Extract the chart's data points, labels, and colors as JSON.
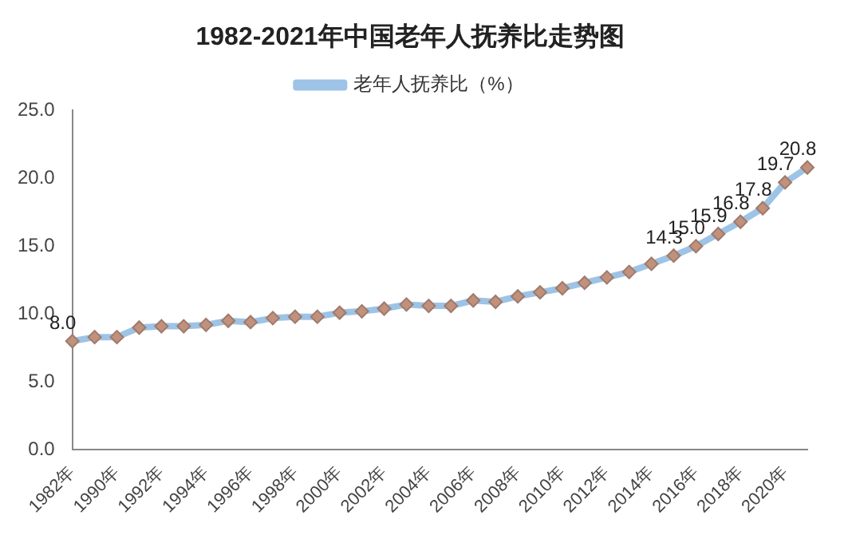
{
  "chart_data": {
    "type": "line",
    "title": "1982-2021年中国老年人抚养比走势图",
    "legend": "top",
    "marker": "diamond",
    "grid": false,
    "categories": [
      "1982年",
      null,
      "1990年",
      null,
      "1992年",
      null,
      "1994年",
      null,
      "1996年",
      null,
      "1998年",
      null,
      "2000年",
      null,
      "2002年",
      null,
      "2004年",
      null,
      "2006年",
      null,
      "2008年",
      null,
      "2010年",
      null,
      "2012年",
      null,
      "2014年",
      null,
      "2016年",
      null,
      "2018年",
      null,
      "2020年",
      null
    ],
    "ylim": [
      0,
      25
    ],
    "yticks": [
      {
        "value": 0,
        "label": "0.0"
      },
      {
        "value": 5,
        "label": "5.0"
      },
      {
        "value": 10,
        "label": "10.0"
      },
      {
        "value": 15,
        "label": "15.0"
      },
      {
        "value": 20,
        "label": "20.0"
      },
      {
        "value": 25,
        "label": "25.0"
      }
    ],
    "series": [
      {
        "name": "老年人抚养比（%）",
        "color": "#9dc3e6",
        "values": [
          8.0,
          8.3,
          8.3,
          9.0,
          9.1,
          9.1,
          9.2,
          9.5,
          9.4,
          9.7,
          9.8,
          9.8,
          10.1,
          10.2,
          10.4,
          10.7,
          10.6,
          10.6,
          11.0,
          10.9,
          11.3,
          11.6,
          11.9,
          12.3,
          12.7,
          13.1,
          13.7,
          14.3,
          15.0,
          15.9,
          16.8,
          17.8,
          19.7,
          20.8
        ],
        "value_labels": [
          "8.0",
          null,
          null,
          null,
          null,
          null,
          null,
          null,
          null,
          null,
          null,
          null,
          null,
          null,
          null,
          null,
          null,
          null,
          null,
          null,
          null,
          null,
          null,
          null,
          null,
          null,
          null,
          "14.3",
          "15.0",
          "15.9",
          "16.8",
          "17.8",
          "19.7",
          "20.8"
        ]
      }
    ]
  }
}
